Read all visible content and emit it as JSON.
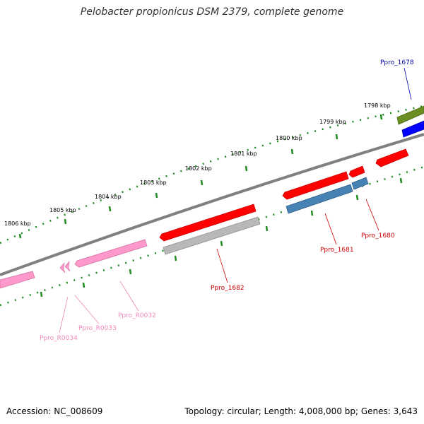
{
  "title": "Pelobacter propionicus DSM 2379, complete genome",
  "accession": "Accession: NC_008609",
  "topology": "Topology: circular; Length: 4,008,000 bp; Genes: 3,643",
  "colors": {
    "backbone": "#808080",
    "tick": "#228b22",
    "gene_red": "#ff0000",
    "gene_red_label": "#cc0000",
    "gene_pink": "#ff99cc",
    "gene_pink_label": "#ee88bb",
    "gene_steelblue": "#4682b4",
    "gene_gray": "#b0b0b0",
    "gene_olive": "#6b8e23",
    "gene_blue": "#0000ff",
    "gene_blue_label": "#0000aa"
  },
  "kbp_labels": [
    "1806 kbp",
    "1805 kbp",
    "1804 kbp",
    "1803 kbp",
    "1802 kbp",
    "1801 kbp",
    "1800 kbp",
    "1799 kbp",
    "1798 kbp"
  ],
  "gene_labels": {
    "ppro_1678": "Ppro_1678",
    "ppro_1680": "Ppro_1680",
    "ppro_1681": "Ppro_1681",
    "ppro_1682": "Ppro_1682",
    "ppro_r0032": "Ppro_R0032",
    "ppro_r0033": "Ppro_R0033",
    "ppro_r0034": "Ppro_R0034"
  }
}
